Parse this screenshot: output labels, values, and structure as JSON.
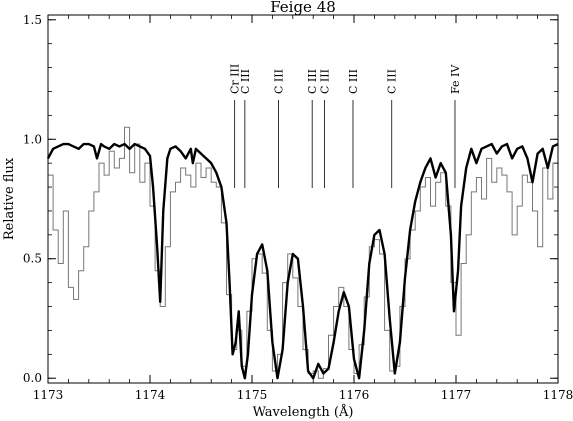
{
  "chart_data": {
    "type": "line",
    "title": "Feige 48",
    "xlabel": "Wavelength (Å)",
    "ylabel": "Relative flux",
    "xlim": [
      1173,
      1178
    ],
    "ylim": [
      -0.02,
      1.52
    ],
    "x_ticks": [
      1173,
      1174,
      1175,
      1176,
      1177,
      1178
    ],
    "y_ticks": [
      0.0,
      0.5,
      1.0,
      1.5
    ],
    "x_tick_labels": [
      "1173",
      "1174",
      "1175",
      "1176",
      "1177",
      "1178"
    ],
    "y_tick_labels": [
      "0.0",
      "0.5",
      "1.0",
      "1.5"
    ],
    "grid": false,
    "series": [
      {
        "style": "observed-histogram",
        "color": "#777777",
        "x": [
          1173.0,
          1173.05,
          1173.1,
          1173.15,
          1173.2,
          1173.25,
          1173.3,
          1173.35,
          1173.4,
          1173.45,
          1173.5,
          1173.55,
          1173.6,
          1173.65,
          1173.7,
          1173.75,
          1173.8,
          1173.85,
          1173.9,
          1173.95,
          1174.0,
          1174.05,
          1174.1,
          1174.15,
          1174.2,
          1174.25,
          1174.3,
          1174.35,
          1174.4,
          1174.45,
          1174.5,
          1174.55,
          1174.6,
          1174.65,
          1174.7,
          1174.75,
          1174.8,
          1174.85,
          1174.9,
          1174.95,
          1175.0,
          1175.05,
          1175.1,
          1175.15,
          1175.2,
          1175.25,
          1175.3,
          1175.35,
          1175.4,
          1175.45,
          1175.5,
          1175.55,
          1175.6,
          1175.65,
          1175.7,
          1175.75,
          1175.8,
          1175.85,
          1175.9,
          1175.95,
          1176.0,
          1176.05,
          1176.1,
          1176.15,
          1176.2,
          1176.25,
          1176.3,
          1176.35,
          1176.4,
          1176.45,
          1176.5,
          1176.55,
          1176.6,
          1176.65,
          1176.7,
          1176.75,
          1176.8,
          1176.85,
          1176.9,
          1176.95,
          1177.0,
          1177.05,
          1177.1,
          1177.15,
          1177.2,
          1177.25,
          1177.3,
          1177.35,
          1177.4,
          1177.45,
          1177.5,
          1177.55,
          1177.6,
          1177.65,
          1177.7,
          1177.75,
          1177.8,
          1177.85,
          1177.9,
          1177.95,
          1178.0
        ],
        "y": [
          0.85,
          0.62,
          0.48,
          0.7,
          0.38,
          0.33,
          0.45,
          0.55,
          0.7,
          0.78,
          0.9,
          0.85,
          0.95,
          0.88,
          0.92,
          1.05,
          0.86,
          0.98,
          0.82,
          0.9,
          0.72,
          0.45,
          0.3,
          0.55,
          0.78,
          0.82,
          0.88,
          0.85,
          0.8,
          0.9,
          0.84,
          0.88,
          0.82,
          0.8,
          0.65,
          0.35,
          0.12,
          0.2,
          0.05,
          0.28,
          0.5,
          0.52,
          0.44,
          0.2,
          0.03,
          0.1,
          0.4,
          0.52,
          0.42,
          0.3,
          0.12,
          0.02,
          0.03,
          0.0,
          0.04,
          0.18,
          0.3,
          0.38,
          0.3,
          0.12,
          0.02,
          0.14,
          0.34,
          0.55,
          0.58,
          0.52,
          0.2,
          0.03,
          0.05,
          0.3,
          0.5,
          0.62,
          0.7,
          0.8,
          0.84,
          0.72,
          0.82,
          0.86,
          0.72,
          0.4,
          0.18,
          0.48,
          0.6,
          0.78,
          0.84,
          0.75,
          0.92,
          0.82,
          0.88,
          0.85,
          0.78,
          0.6,
          0.72,
          0.85,
          0.82,
          0.7,
          0.55,
          0.88,
          0.75,
          0.9,
          0.93
        ]
      },
      {
        "style": "model",
        "color": "#000000",
        "x": [
          1173.0,
          1173.05,
          1173.1,
          1173.15,
          1173.2,
          1173.25,
          1173.3,
          1173.35,
          1173.4,
          1173.45,
          1173.48,
          1173.52,
          1173.55,
          1173.6,
          1173.65,
          1173.7,
          1173.75,
          1173.8,
          1173.85,
          1173.9,
          1173.95,
          1174.0,
          1174.03,
          1174.07,
          1174.1,
          1174.13,
          1174.17,
          1174.2,
          1174.25,
          1174.3,
          1174.35,
          1174.4,
          1174.42,
          1174.45,
          1174.5,
          1174.55,
          1174.6,
          1174.65,
          1174.7,
          1174.75,
          1174.78,
          1174.81,
          1174.84,
          1174.87,
          1174.9,
          1174.93,
          1174.96,
          1175.0,
          1175.05,
          1175.1,
          1175.15,
          1175.2,
          1175.25,
          1175.3,
          1175.35,
          1175.4,
          1175.45,
          1175.5,
          1175.55,
          1175.6,
          1175.65,
          1175.7,
          1175.75,
          1175.8,
          1175.85,
          1175.9,
          1175.95,
          1176.0,
          1176.05,
          1176.1,
          1176.15,
          1176.2,
          1176.25,
          1176.3,
          1176.35,
          1176.4,
          1176.45,
          1176.5,
          1176.55,
          1176.6,
          1176.65,
          1176.7,
          1176.75,
          1176.8,
          1176.85,
          1176.9,
          1176.95,
          1176.98,
          1177.02,
          1177.05,
          1177.1,
          1177.15,
          1177.2,
          1177.25,
          1177.3,
          1177.35,
          1177.4,
          1177.45,
          1177.5,
          1177.55,
          1177.6,
          1177.65,
          1177.7,
          1177.75,
          1177.8,
          1177.85,
          1177.9,
          1177.95,
          1178.0
        ],
        "y": [
          0.92,
          0.96,
          0.97,
          0.98,
          0.98,
          0.97,
          0.96,
          0.98,
          0.98,
          0.97,
          0.92,
          0.98,
          0.97,
          0.96,
          0.98,
          0.97,
          0.98,
          0.96,
          0.98,
          0.97,
          0.96,
          0.93,
          0.8,
          0.55,
          0.32,
          0.7,
          0.92,
          0.96,
          0.97,
          0.95,
          0.92,
          0.96,
          0.9,
          0.96,
          0.94,
          0.92,
          0.9,
          0.86,
          0.8,
          0.65,
          0.4,
          0.1,
          0.15,
          0.28,
          0.05,
          0.0,
          0.1,
          0.35,
          0.52,
          0.56,
          0.45,
          0.15,
          0.0,
          0.12,
          0.4,
          0.52,
          0.5,
          0.3,
          0.03,
          0.0,
          0.06,
          0.02,
          0.04,
          0.15,
          0.28,
          0.36,
          0.3,
          0.08,
          0.0,
          0.2,
          0.48,
          0.6,
          0.62,
          0.52,
          0.25,
          0.02,
          0.15,
          0.42,
          0.62,
          0.74,
          0.82,
          0.88,
          0.92,
          0.84,
          0.9,
          0.86,
          0.6,
          0.28,
          0.45,
          0.72,
          0.88,
          0.96,
          0.9,
          0.96,
          0.97,
          0.98,
          0.94,
          0.97,
          0.98,
          0.92,
          0.96,
          0.97,
          0.92,
          0.82,
          0.94,
          0.96,
          0.88,
          0.97,
          0.98
        ]
      }
    ],
    "line_marks": [
      {
        "label": "Cr III",
        "x": 1174.83
      },
      {
        "label": "C III",
        "x": 1174.93
      },
      {
        "label": "C III",
        "x": 1175.26
      },
      {
        "label": "C III",
        "x": 1175.59
      },
      {
        "label": "C III",
        "x": 1175.71
      },
      {
        "label": "C III",
        "x": 1175.99
      },
      {
        "label": "C III",
        "x": 1176.37
      },
      {
        "label": "Fe IV",
        "x": 1176.99
      }
    ]
  }
}
